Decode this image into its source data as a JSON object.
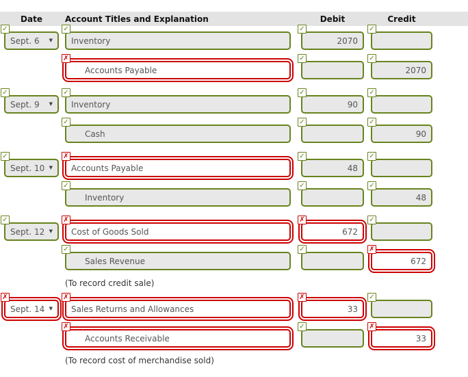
{
  "colors": {
    "correct_green": "#67831d",
    "incorrect_red": "#cc0000",
    "field_bg": "#e8e8e8",
    "header_bg": "#e3e3e3"
  },
  "icons": {
    "correct": "✓",
    "incorrect": "✗",
    "select_caret": "▼"
  },
  "header": {
    "date": "Date",
    "account": "Account Titles and Explanation",
    "debit": "Debit",
    "credit": "Credit"
  },
  "rows": [
    {
      "kind": "line",
      "date": {
        "label": "Sept. 6",
        "status": "correct"
      },
      "account": {
        "label": "Inventory",
        "status": "correct",
        "indent": false
      },
      "debit": {
        "value": "2070",
        "status": "correct"
      },
      "credit": {
        "value": "",
        "status": "correct"
      }
    },
    {
      "kind": "line",
      "date": null,
      "account": {
        "label": "Accounts Payable",
        "status": "incorrect",
        "indent": true
      },
      "debit": {
        "value": "",
        "status": "correct"
      },
      "credit": {
        "value": "2070",
        "status": "correct"
      }
    },
    {
      "kind": "line",
      "date": {
        "label": "Sept. 9",
        "status": "correct"
      },
      "account": {
        "label": "Inventory",
        "status": "correct",
        "indent": false
      },
      "debit": {
        "value": "90",
        "status": "correct"
      },
      "credit": {
        "value": "",
        "status": "correct"
      }
    },
    {
      "kind": "line",
      "date": null,
      "account": {
        "label": "Cash",
        "status": "correct",
        "indent": true
      },
      "debit": {
        "value": "",
        "status": "correct"
      },
      "credit": {
        "value": "90",
        "status": "correct"
      }
    },
    {
      "kind": "line",
      "date": {
        "label": "Sept. 10",
        "status": "correct"
      },
      "account": {
        "label": "Accounts Payable",
        "status": "incorrect",
        "indent": false
      },
      "debit": {
        "value": "48",
        "status": "correct"
      },
      "credit": {
        "value": "",
        "status": "correct"
      }
    },
    {
      "kind": "line",
      "date": null,
      "account": {
        "label": "Inventory",
        "status": "correct",
        "indent": true
      },
      "debit": {
        "value": "",
        "status": "correct"
      },
      "credit": {
        "value": "48",
        "status": "correct"
      }
    },
    {
      "kind": "line",
      "date": {
        "label": "Sept. 12",
        "status": "correct"
      },
      "account": {
        "label": "Cost of Goods Sold",
        "status": "incorrect",
        "indent": false
      },
      "debit": {
        "value": "672",
        "status": "incorrect"
      },
      "credit": {
        "value": "",
        "status": "correct"
      }
    },
    {
      "kind": "line",
      "date": null,
      "account": {
        "label": "Sales Revenue",
        "status": "correct",
        "indent": true
      },
      "debit": {
        "value": "",
        "status": "correct"
      },
      "credit": {
        "value": "672",
        "status": "incorrect"
      }
    },
    {
      "kind": "note",
      "text": "(To record credit sale)"
    },
    {
      "kind": "line",
      "date": {
        "label": "Sept. 14",
        "status": "incorrect"
      },
      "account": {
        "label": "Sales Returns and Allowances",
        "status": "incorrect",
        "indent": false
      },
      "debit": {
        "value": "33",
        "status": "incorrect"
      },
      "credit": {
        "value": "",
        "status": "correct"
      }
    },
    {
      "kind": "line",
      "date": null,
      "account": {
        "label": "Accounts Receivable",
        "status": "incorrect",
        "indent": true
      },
      "debit": {
        "value": "",
        "status": "correct"
      },
      "credit": {
        "value": "33",
        "status": "incorrect"
      }
    },
    {
      "kind": "note",
      "text": "(To record cost of merchandise sold)"
    }
  ]
}
